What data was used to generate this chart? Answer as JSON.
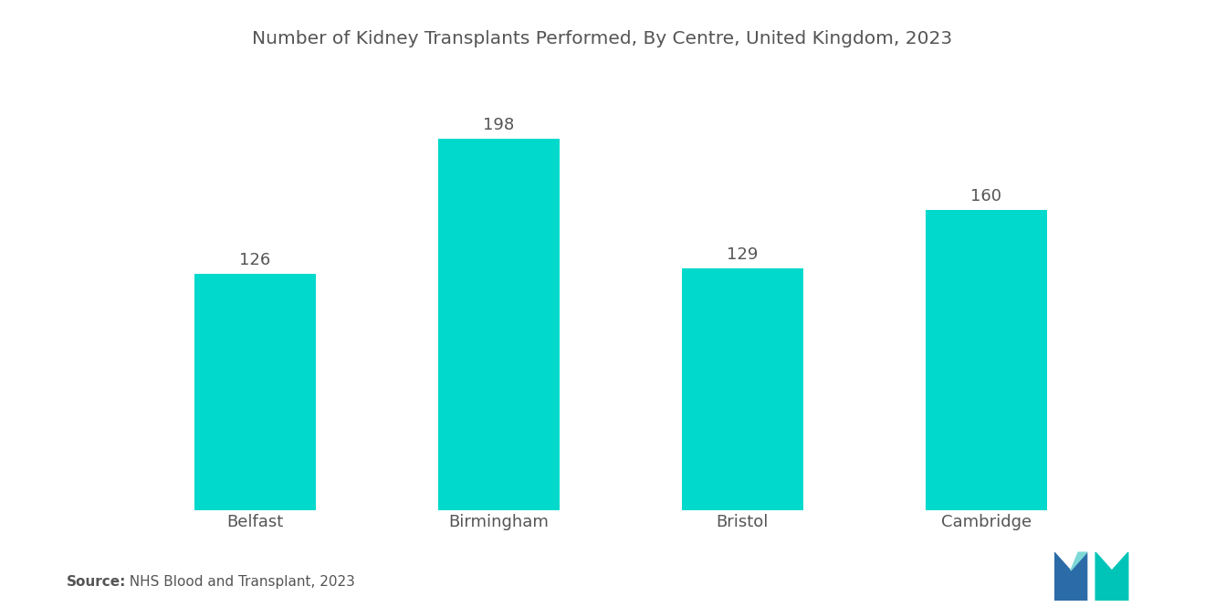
{
  "title": "Number of Kidney Transplants Performed, By Centre, United Kingdom, 2023",
  "categories": [
    "Belfast",
    "Birmingham",
    "Bristol",
    "Cambridge"
  ],
  "values": [
    126,
    198,
    129,
    160
  ],
  "bar_color": "#00D9CC",
  "background_color": "#ffffff",
  "title_fontsize": 14.5,
  "label_fontsize": 13,
  "value_fontsize": 13,
  "source_label": "Source:",
  "source_rest": "  NHS Blood and Transplant, 2023",
  "ylim": [
    0,
    230
  ],
  "bar_width": 0.5
}
